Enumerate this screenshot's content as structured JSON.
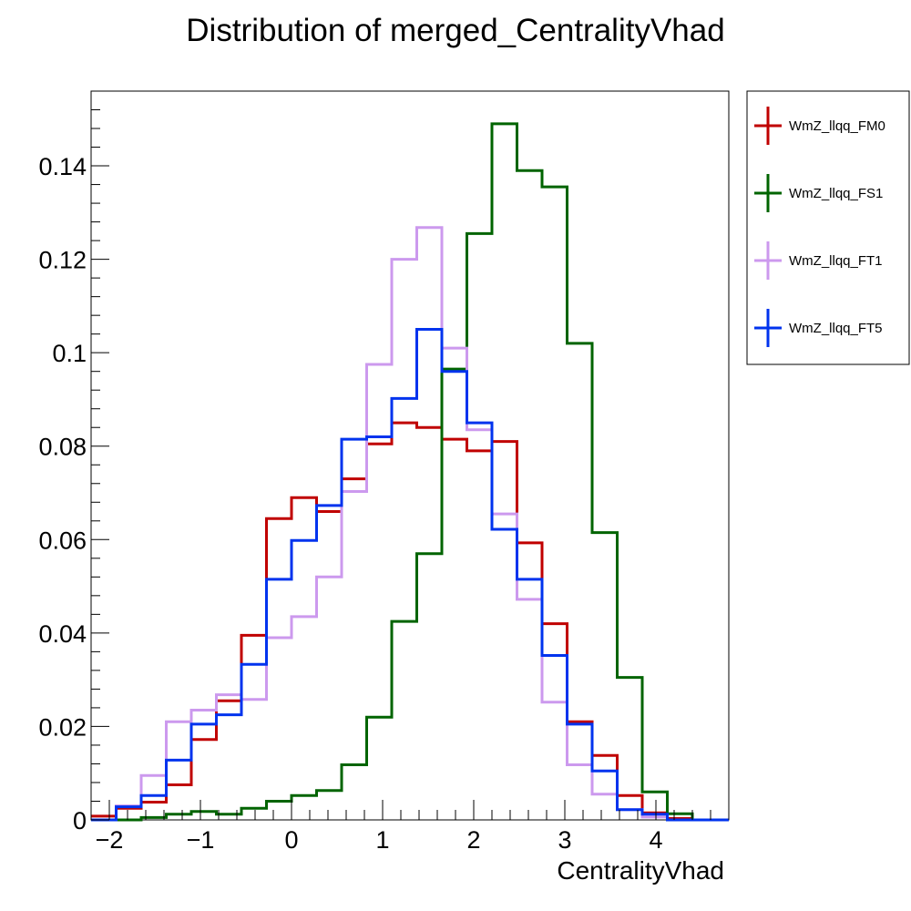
{
  "chart_data": {
    "type": "line",
    "step": true,
    "title": "Distribution of merged_CentralityVhad",
    "xlabel": "CentralityVhad",
    "ylabel": "",
    "xlim": [
      -2.2,
      4.8
    ],
    "ylim": [
      0,
      0.156
    ],
    "xticks": [
      -2,
      -1,
      0,
      1,
      2,
      3,
      4
    ],
    "xtick_labels": [
      "−2",
      "−1",
      "0",
      "1",
      "2",
      "3",
      "4"
    ],
    "yticks": [
      0,
      0.02,
      0.04,
      0.06,
      0.08,
      0.1,
      0.12,
      0.14
    ],
    "ytick_labels": [
      "0",
      "0.02",
      "0.04",
      "0.06",
      "0.08",
      "0.1",
      "0.12",
      "0.14"
    ],
    "grid": false,
    "legend_position": "outside-right-top",
    "bin_edges": [
      -2.2,
      -1.925,
      -1.65,
      -1.375,
      -1.1,
      -0.825,
      -0.55,
      -0.275,
      0.0,
      0.275,
      0.55,
      0.825,
      1.1,
      1.375,
      1.65,
      1.925,
      2.2,
      2.475,
      2.75,
      3.025,
      3.3,
      3.575,
      3.85,
      4.125,
      4.4,
      4.675,
      4.8
    ],
    "series": [
      {
        "name": "WmZ_llqq_FM0",
        "color": "#c00000",
        "values": [
          0.0008,
          0.0025,
          0.0038,
          0.0075,
          0.0172,
          0.0255,
          0.0395,
          0.0645,
          0.069,
          0.066,
          0.073,
          0.0805,
          0.085,
          0.084,
          0.0815,
          0.079,
          0.081,
          0.0593,
          0.042,
          0.021,
          0.0138,
          0.0052,
          0.0015,
          0.0003,
          0.0,
          0.0
        ]
      },
      {
        "name": "WmZ_llqq_FS1",
        "color": "#006400",
        "values": [
          0.0,
          0.0,
          0.0005,
          0.0012,
          0.0018,
          0.0012,
          0.0025,
          0.004,
          0.0052,
          0.0063,
          0.0118,
          0.022,
          0.0425,
          0.057,
          0.0965,
          0.1255,
          0.149,
          0.139,
          0.1355,
          0.102,
          0.0615,
          0.0305,
          0.006,
          0.0013,
          0.0,
          0.0
        ]
      },
      {
        "name": "WmZ_llqq_FT1",
        "color": "#cc99ee",
        "values": [
          0.0,
          0.003,
          0.0095,
          0.021,
          0.0235,
          0.0268,
          0.0258,
          0.039,
          0.0435,
          0.052,
          0.0703,
          0.0975,
          0.12,
          0.1268,
          0.101,
          0.0835,
          0.0655,
          0.0472,
          0.0252,
          0.0118,
          0.0055,
          0.0022,
          0.0006,
          0.0,
          0.0,
          0.0
        ]
      },
      {
        "name": "WmZ_llqq_FT5",
        "color": "#0033ee",
        "values": [
          0.0,
          0.0028,
          0.0052,
          0.0128,
          0.0205,
          0.0225,
          0.0333,
          0.0515,
          0.0598,
          0.0673,
          0.0815,
          0.082,
          0.0902,
          0.105,
          0.096,
          0.085,
          0.0622,
          0.0515,
          0.0352,
          0.0205,
          0.0105,
          0.0022,
          0.0012,
          0.0,
          0.0,
          0.0
        ]
      }
    ]
  }
}
